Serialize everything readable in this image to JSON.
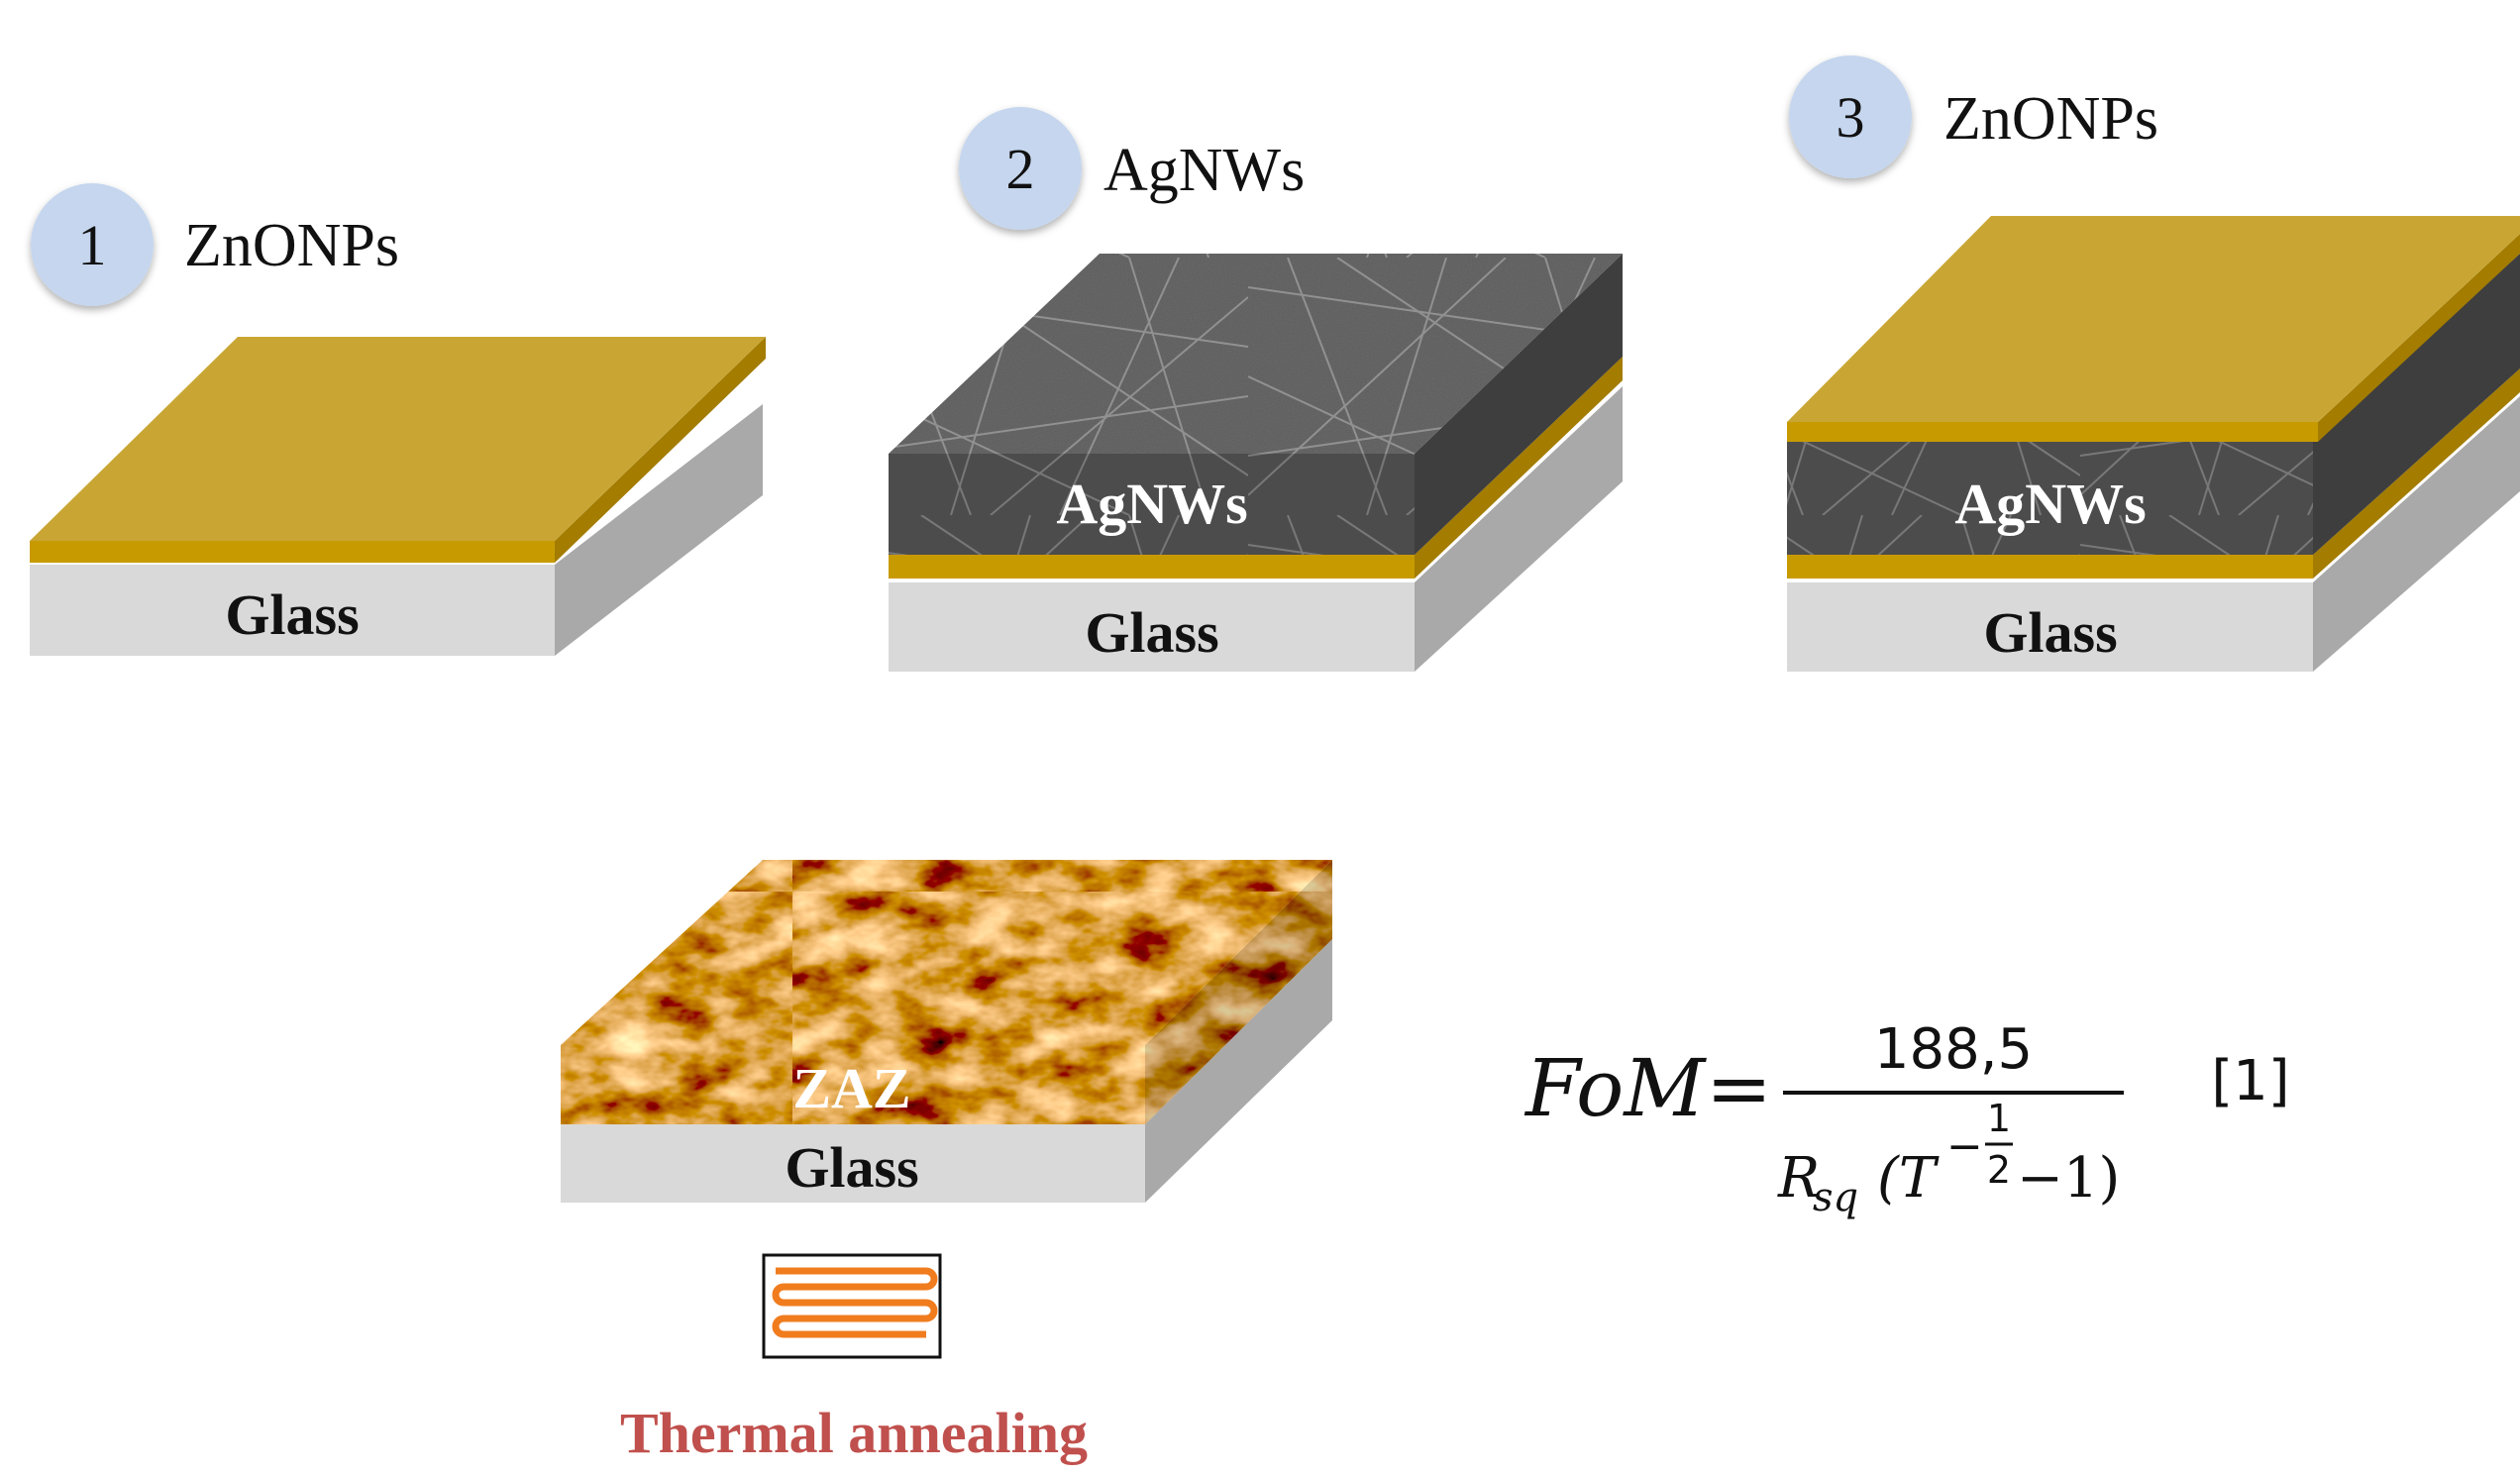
{
  "steps": [
    {
      "number": "1",
      "material": "ZnONPs"
    },
    {
      "number": "2",
      "material": "AgNWs"
    },
    {
      "number": "3",
      "material": "ZnONPs"
    }
  ],
  "layer_labels": {
    "glass": "Glass",
    "agnws": "AgNWs",
    "zaz": "ZAZ"
  },
  "annealing_label": "Thermal annealing",
  "equation": {
    "lhs_f": "F",
    "lhs_o": "o",
    "lhs_m": "M",
    "equals": "=",
    "numerator": "188,5",
    "den_r": "R",
    "den_sub": "sq",
    "den_open": "(T",
    "exp_minus": "−",
    "exp_num": "1",
    "exp_den": "2",
    "den_close": "−1)",
    "ref": "[1]"
  },
  "colors": {
    "zno_top": "#c9a634",
    "zno_front": "#c79b00",
    "zno_side": "#a37c00",
    "glass_front": "#d9d9d9",
    "glass_side": "#a9a9a9",
    "circle": "#c5d6ee",
    "annealing": "#c0504d",
    "heater": "#f07c1e"
  }
}
